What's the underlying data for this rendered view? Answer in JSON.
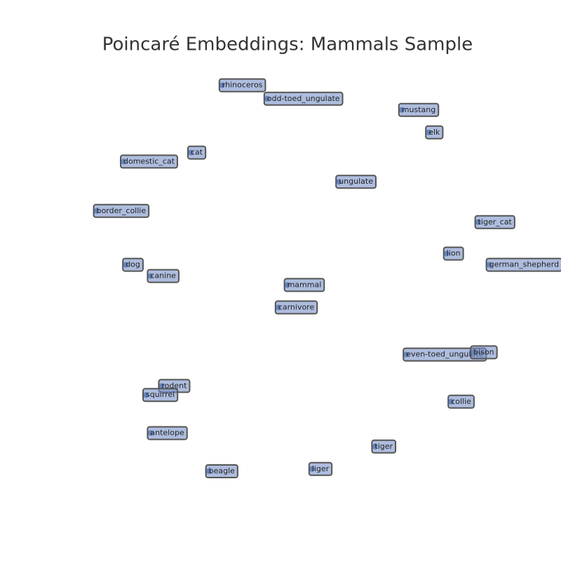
{
  "chart_data": {
    "type": "scatter",
    "title": "Poincaré Embeddings: Mammals Sample",
    "color": "#4c72b0",
    "labels": [
      "rhinoceros",
      "odd-toed_ungulate",
      "mustang",
      "elk",
      "cat",
      "domestic_cat",
      "ungulate",
      "border_collie",
      "tiger_cat",
      "lion",
      "german_shepherd",
      "dog",
      "canine",
      "mammal",
      "carnivore",
      "even-toed_ungulate",
      "bison",
      "rodent",
      "squirrel",
      "collie",
      "antelope",
      "tiger",
      "beagle",
      "liger"
    ],
    "x": [
      -0.26,
      -0.06,
      0.54,
      0.66,
      -0.4,
      -0.7,
      0.26,
      -0.82,
      0.88,
      0.74,
      0.93,
      -0.69,
      -0.58,
      0.03,
      -0.01,
      0.56,
      0.86,
      -0.53,
      -0.6,
      0.76,
      -0.58,
      0.42,
      -0.32,
      0.14
    ],
    "y": [
      0.87,
      0.81,
      0.76,
      0.66,
      0.57,
      0.53,
      0.44,
      0.31,
      0.26,
      0.12,
      0.07,
      0.07,
      0.02,
      -0.02,
      -0.12,
      -0.33,
      -0.32,
      -0.47,
      -0.51,
      -0.54,
      -0.68,
      -0.74,
      -0.85,
      -0.84
    ],
    "xlim": [
      -1,
      1
    ],
    "ylim": [
      -1,
      1
    ]
  }
}
